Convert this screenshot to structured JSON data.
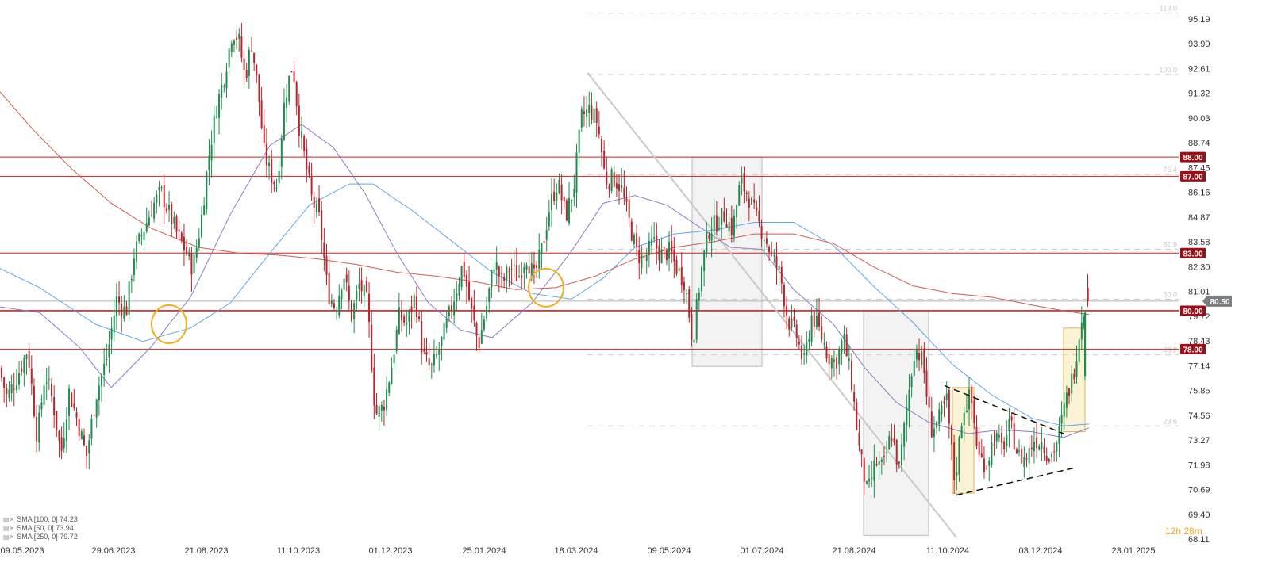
{
  "chart_data": {
    "type": "candlestick",
    "ylim": [
      68.11,
      96.0
    ],
    "price_ticks": [
      "95.19",
      "93.90",
      "92.61",
      "91.32",
      "90.03",
      "88.74",
      "87.45",
      "86.16",
      "84.87",
      "83.58",
      "82.30",
      "81.01",
      "79.72",
      "78.43",
      "77.14",
      "75.85",
      "74.56",
      "73.27",
      "71.98",
      "70.69",
      "69.40",
      "68.11"
    ],
    "date_ticks": [
      "09.05.2023",
      "29.06.2023",
      "21.08.2023",
      "11.10.2023",
      "01.12.2023",
      "25.01.2024",
      "18.03.2024",
      "09.05.2024",
      "01.07.2024",
      "21.08.2024",
      "11.10.2024",
      "03.12.2024",
      "23.01.2025"
    ],
    "current_price": "80.50",
    "horizontal_levels": [
      {
        "label": "88.00",
        "value": 88.0
      },
      {
        "label": "87.00",
        "value": 87.0
      },
      {
        "label": "83.00",
        "value": 83.0
      },
      {
        "label": "80.00",
        "value": 80.0
      },
      {
        "label": "78.00",
        "value": 78.0
      }
    ],
    "fib_levels": [
      {
        "label": "113.0",
        "value": 95.5
      },
      {
        "label": "100.0",
        "value": 92.3
      },
      {
        "label": "76.4",
        "value": 87.1
      },
      {
        "label": "61.8",
        "value": 83.2
      },
      {
        "label": "50.0",
        "value": 80.6
      },
      {
        "label": "38.2",
        "value": 77.7
      },
      {
        "label": "23.6",
        "value": 74.0
      }
    ],
    "series": [
      {
        "name": "SMA [100, 0] 74.23",
        "color": "#5da9e9",
        "points": [
          [
            0,
            82.2
          ],
          [
            50,
            81.2
          ],
          [
            120,
            79.3
          ],
          [
            180,
            78.4
          ],
          [
            240,
            79.1
          ],
          [
            290,
            80.4
          ],
          [
            340,
            83.0
          ],
          [
            390,
            85.5
          ],
          [
            440,
            86.6
          ],
          [
            470,
            86.6
          ],
          [
            520,
            85.2
          ],
          [
            570,
            83.6
          ],
          [
            620,
            82.0
          ],
          [
            670,
            80.9
          ],
          [
            720,
            80.6
          ],
          [
            760,
            81.7
          ],
          [
            800,
            83.3
          ],
          [
            850,
            84.0
          ],
          [
            900,
            84.2
          ],
          [
            950,
            84.6
          ],
          [
            1000,
            84.6
          ],
          [
            1050,
            83.4
          ],
          [
            1100,
            81.3
          ],
          [
            1150,
            79.4
          ],
          [
            1200,
            77.2
          ],
          [
            1250,
            75.6
          ],
          [
            1300,
            74.4
          ],
          [
            1340,
            74.0
          ],
          [
            1372,
            74.1
          ]
        ]
      },
      {
        "name": "SMA [50, 0] 73.94",
        "color": "#8e7cc3",
        "points": [
          [
            0,
            80.2
          ],
          [
            50,
            79.9
          ],
          [
            100,
            78.1
          ],
          [
            140,
            76.0
          ],
          [
            190,
            78.1
          ],
          [
            240,
            80.7
          ],
          [
            290,
            85.0
          ],
          [
            340,
            88.6
          ],
          [
            380,
            89.7
          ],
          [
            420,
            88.5
          ],
          [
            460,
            86.1
          ],
          [
            500,
            83.0
          ],
          [
            540,
            80.4
          ],
          [
            580,
            79.0
          ],
          [
            620,
            78.6
          ],
          [
            670,
            80.4
          ],
          [
            720,
            83.1
          ],
          [
            760,
            85.6
          ],
          [
            800,
            86.0
          ],
          [
            840,
            85.5
          ],
          [
            880,
            84.4
          ],
          [
            920,
            83.3
          ],
          [
            960,
            83.2
          ],
          [
            1000,
            81.1
          ],
          [
            1050,
            79.3
          ],
          [
            1090,
            77.0
          ],
          [
            1130,
            75.2
          ],
          [
            1170,
            74.2
          ],
          [
            1220,
            73.6
          ],
          [
            1260,
            73.8
          ],
          [
            1300,
            73.7
          ],
          [
            1340,
            73.4
          ],
          [
            1372,
            73.9
          ]
        ]
      },
      {
        "name": "SMA [250, 0] 79.72",
        "color": "#d35b52",
        "points": [
          [
            0,
            91.4
          ],
          [
            40,
            89.5
          ],
          [
            90,
            87.4
          ],
          [
            140,
            85.6
          ],
          [
            190,
            84.3
          ],
          [
            250,
            83.3
          ],
          [
            300,
            83.0
          ],
          [
            350,
            82.9
          ],
          [
            400,
            82.7
          ],
          [
            450,
            82.4
          ],
          [
            500,
            82.0
          ],
          [
            550,
            81.8
          ],
          [
            600,
            81.5
          ],
          [
            650,
            81.1
          ],
          [
            700,
            81.2
          ],
          [
            750,
            81.8
          ],
          [
            800,
            82.7
          ],
          [
            850,
            83.3
          ],
          [
            900,
            83.6
          ],
          [
            950,
            84.0
          ],
          [
            1000,
            84.0
          ],
          [
            1050,
            83.5
          ],
          [
            1100,
            82.3
          ],
          [
            1150,
            81.3
          ],
          [
            1200,
            80.9
          ],
          [
            1250,
            80.7
          ],
          [
            1300,
            80.3
          ],
          [
            1340,
            80.0
          ],
          [
            1372,
            79.8
          ]
        ]
      }
    ],
    "price_path": [
      [
        0,
        77.3
      ],
      [
        12,
        75.5
      ],
      [
        24,
        76.5
      ],
      [
        38,
        78.0
      ],
      [
        50,
        73.4
      ],
      [
        60,
        76.8
      ],
      [
        70,
        75.2
      ],
      [
        80,
        72.5
      ],
      [
        90,
        75.8
      ],
      [
        100,
        74.4
      ],
      [
        112,
        72.4
      ],
      [
        124,
        75.6
      ],
      [
        138,
        77.6
      ],
      [
        150,
        80.6
      ],
      [
        162,
        79.9
      ],
      [
        172,
        82.9
      ],
      [
        184,
        84.2
      ],
      [
        196,
        85.5
      ],
      [
        206,
        86.2
      ],
      [
        216,
        85.1
      ],
      [
        226,
        84.0
      ],
      [
        236,
        83.2
      ],
      [
        246,
        82.2
      ],
      [
        256,
        84.5
      ],
      [
        266,
        88.0
      ],
      [
        276,
        90.6
      ],
      [
        286,
        92.3
      ],
      [
        296,
        94.6
      ],
      [
        304,
        94.1
      ],
      [
        312,
        92.1
      ],
      [
        320,
        94.0
      ],
      [
        328,
        91.6
      ],
      [
        336,
        88.2
      ],
      [
        344,
        87.1
      ],
      [
        352,
        86.5
      ],
      [
        362,
        91.1
      ],
      [
        372,
        92.9
      ],
      [
        380,
        89.6
      ],
      [
        388,
        87.7
      ],
      [
        396,
        85.8
      ],
      [
        406,
        84.7
      ],
      [
        416,
        81.0
      ],
      [
        426,
        80.1
      ],
      [
        436,
        82.0
      ],
      [
        446,
        79.7
      ],
      [
        456,
        81.4
      ],
      [
        466,
        80.4
      ],
      [
        476,
        74.6
      ],
      [
        486,
        75.0
      ],
      [
        496,
        77.0
      ],
      [
        506,
        79.7
      ],
      [
        516,
        79.3
      ],
      [
        526,
        80.8
      ],
      [
        536,
        77.7
      ],
      [
        546,
        76.9
      ],
      [
        556,
        77.9
      ],
      [
        566,
        79.3
      ],
      [
        576,
        80.8
      ],
      [
        586,
        82.4
      ],
      [
        596,
        80.2
      ],
      [
        606,
        78.2
      ],
      [
        616,
        80.2
      ],
      [
        626,
        82.6
      ],
      [
        636,
        81.4
      ],
      [
        646,
        82.3
      ],
      [
        656,
        81.7
      ],
      [
        666,
        82.9
      ],
      [
        676,
        81.7
      ],
      [
        686,
        83.2
      ],
      [
        696,
        85.5
      ],
      [
        706,
        86.7
      ],
      [
        716,
        84.9
      ],
      [
        726,
        86.4
      ],
      [
        736,
        90.1
      ],
      [
        746,
        90.5
      ],
      [
        756,
        89.8
      ],
      [
        766,
        86.8
      ],
      [
        776,
        86.9
      ],
      [
        786,
        86.4
      ],
      [
        796,
        84.6
      ],
      [
        806,
        82.9
      ],
      [
        816,
        82.7
      ],
      [
        826,
        83.6
      ],
      [
        836,
        82.9
      ],
      [
        846,
        83.1
      ],
      [
        856,
        82.2
      ],
      [
        866,
        81.5
      ],
      [
        876,
        78.4
      ],
      [
        886,
        81.9
      ],
      [
        896,
        84.2
      ],
      [
        906,
        84.6
      ],
      [
        916,
        85.0
      ],
      [
        926,
        84.2
      ],
      [
        936,
        86.7
      ],
      [
        946,
        86.0
      ],
      [
        956,
        84.8
      ],
      [
        966,
        83.9
      ],
      [
        976,
        82.8
      ],
      [
        986,
        81.9
      ],
      [
        996,
        79.5
      ],
      [
        1006,
        78.8
      ],
      [
        1016,
        77.2
      ],
      [
        1026,
        79.8
      ],
      [
        1036,
        78.9
      ],
      [
        1046,
        77.7
      ],
      [
        1056,
        77.3
      ],
      [
        1066,
        78.6
      ],
      [
        1076,
        76.3
      ],
      [
        1086,
        72.7
      ],
      [
        1096,
        70.4
      ],
      [
        1106,
        72.1
      ],
      [
        1116,
        71.8
      ],
      [
        1126,
        73.7
      ],
      [
        1136,
        71.7
      ],
      [
        1146,
        75.1
      ],
      [
        1156,
        78.2
      ],
      [
        1166,
        77.3
      ],
      [
        1176,
        73.8
      ],
      [
        1186,
        74.3
      ],
      [
        1196,
        75.3
      ],
      [
        1206,
        71.0
      ],
      [
        1216,
        74.8
      ],
      [
        1226,
        75.6
      ],
      [
        1236,
        72.4
      ],
      [
        1246,
        72.0
      ],
      [
        1256,
        73.5
      ],
      [
        1266,
        72.8
      ],
      [
        1276,
        74.1
      ],
      [
        1286,
        72.4
      ],
      [
        1296,
        72.3
      ],
      [
        1306,
        73.3
      ],
      [
        1316,
        73.2
      ],
      [
        1326,
        72.3
      ],
      [
        1336,
        73.3
      ],
      [
        1346,
        75.3
      ],
      [
        1356,
        76.8
      ],
      [
        1366,
        79.7
      ],
      [
        1372,
        80.6
      ]
    ],
    "dashed_triangle": [
      {
        "from": [
          1190,
          76.1
        ],
        "to": [
          1340,
          73.6
        ]
      },
      {
        "from": [
          1205,
          70.4
        ],
        "to": [
          1352,
          71.8
        ]
      }
    ],
    "diagonal_trend": {
      "from": [
        740,
        92.4
      ],
      "to": [
        1205,
        68.2
      ]
    },
    "gray_zones": [
      {
        "x0": 872,
        "x1": 960,
        "y_top": 88.0,
        "y_bottom": 77.1
      },
      {
        "x0": 1088,
        "x1": 1170,
        "y_top": 80.0,
        "y_bottom": 68.3
      }
    ],
    "orange_zones": [
      {
        "x0": 1200,
        "x1": 1227,
        "y_top": 76.0,
        "y_bottom": 70.5
      },
      {
        "x0": 1340,
        "x1": 1367,
        "y_top": 79.1,
        "y_bottom": 73.7
      }
    ],
    "crossover_markers": [
      {
        "x": 213,
        "y": 79.3
      },
      {
        "x": 688,
        "y": 81.2
      }
    ]
  },
  "legend": [
    {
      "label": "SMA [100, 0] 74.23"
    },
    {
      "label": "SMA [50, 0] 73.94"
    },
    {
      "label": "SMA [250, 0] 79.72"
    }
  ],
  "countdown": "12h 28m",
  "colors": {
    "up": "#1e8c4e",
    "down": "#c0222b",
    "level": "#d22020",
    "badge_dark": "#a00d14",
    "badge_price": "#7a7d82",
    "grid": "#d8d8d8",
    "gray_line": "#bdbdbd"
  }
}
